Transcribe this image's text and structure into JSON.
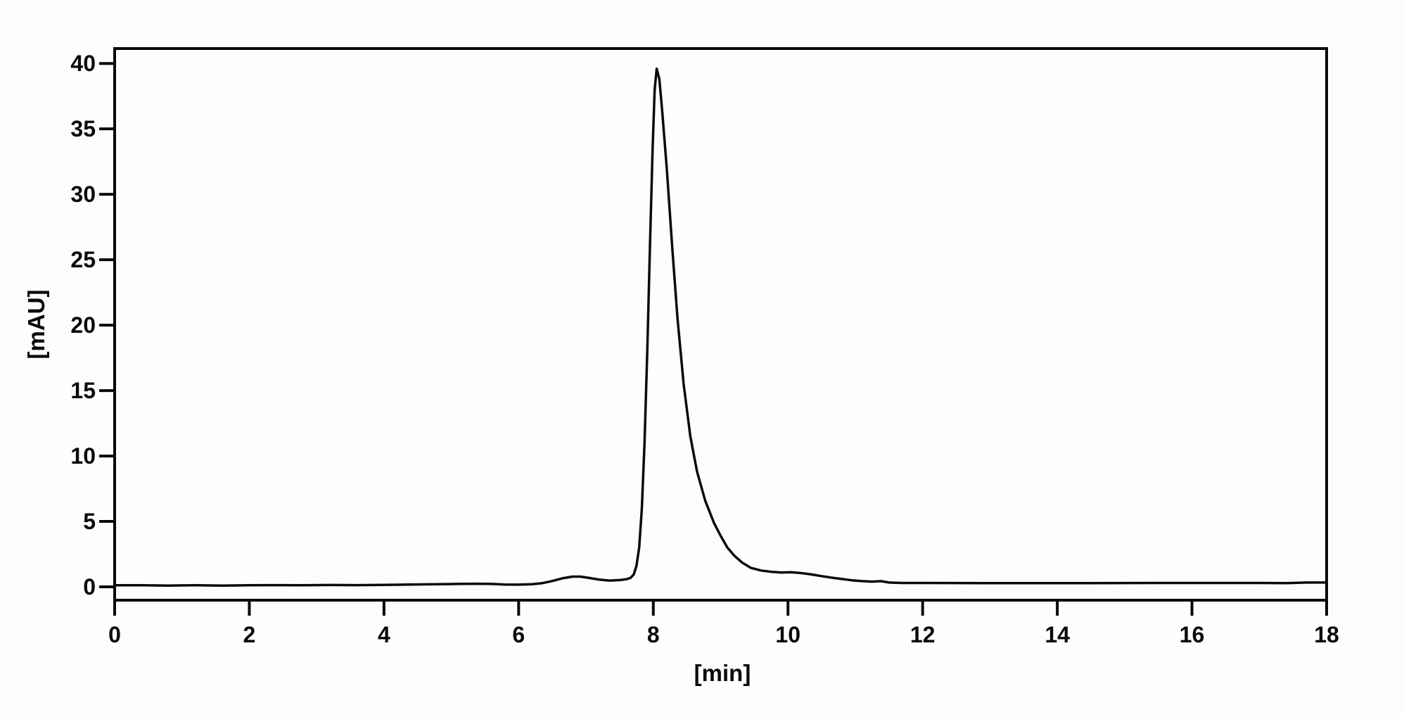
{
  "page": {
    "background": "#fdfdfc",
    "ink_color": "#0a0a0a"
  },
  "chart_data": {
    "type": "line",
    "title": "",
    "xlabel": "[min]",
    "ylabel": "[mAU]",
    "xlim": [
      0,
      18
    ],
    "ylim": [
      -1.02,
      41.14
    ],
    "xticks": [
      0,
      2,
      4,
      6,
      8,
      10,
      12,
      14,
      16,
      18
    ],
    "yticks": [
      0,
      5,
      10,
      15,
      20,
      25,
      30,
      35,
      40
    ],
    "grid": false,
    "legend_position": "none",
    "series": [
      {
        "name": "detector-signal",
        "color": "#0a0a0a",
        "points": [
          [
            0.0,
            0.12
          ],
          [
            0.4,
            0.12
          ],
          [
            0.8,
            0.1
          ],
          [
            1.2,
            0.12
          ],
          [
            1.6,
            0.1
          ],
          [
            2.0,
            0.12
          ],
          [
            2.4,
            0.13
          ],
          [
            2.8,
            0.12
          ],
          [
            3.2,
            0.14
          ],
          [
            3.6,
            0.13
          ],
          [
            4.0,
            0.15
          ],
          [
            4.4,
            0.18
          ],
          [
            4.8,
            0.2
          ],
          [
            5.1,
            0.22
          ],
          [
            5.4,
            0.24
          ],
          [
            5.6,
            0.22
          ],
          [
            5.8,
            0.18
          ],
          [
            6.0,
            0.17
          ],
          [
            6.2,
            0.2
          ],
          [
            6.35,
            0.28
          ],
          [
            6.5,
            0.45
          ],
          [
            6.65,
            0.65
          ],
          [
            6.8,
            0.78
          ],
          [
            6.92,
            0.78
          ],
          [
            7.05,
            0.68
          ],
          [
            7.2,
            0.55
          ],
          [
            7.35,
            0.48
          ],
          [
            7.5,
            0.52
          ],
          [
            7.6,
            0.58
          ],
          [
            7.66,
            0.68
          ],
          [
            7.71,
            0.95
          ],
          [
            7.75,
            1.6
          ],
          [
            7.79,
            3.0
          ],
          [
            7.83,
            6.0
          ],
          [
            7.87,
            11.0
          ],
          [
            7.91,
            18.0
          ],
          [
            7.95,
            26.0
          ],
          [
            7.99,
            33.5
          ],
          [
            8.02,
            38.0
          ],
          [
            8.05,
            39.6
          ],
          [
            8.09,
            38.8
          ],
          [
            8.13,
            36.5
          ],
          [
            8.2,
            32.0
          ],
          [
            8.28,
            26.0
          ],
          [
            8.36,
            20.5
          ],
          [
            8.45,
            15.5
          ],
          [
            8.55,
            11.5
          ],
          [
            8.65,
            8.8
          ],
          [
            8.77,
            6.6
          ],
          [
            8.9,
            4.9
          ],
          [
            9.0,
            3.9
          ],
          [
            9.1,
            3.0
          ],
          [
            9.2,
            2.4
          ],
          [
            9.32,
            1.85
          ],
          [
            9.45,
            1.45
          ],
          [
            9.6,
            1.25
          ],
          [
            9.75,
            1.15
          ],
          [
            9.9,
            1.1
          ],
          [
            10.05,
            1.12
          ],
          [
            10.2,
            1.05
          ],
          [
            10.35,
            0.95
          ],
          [
            10.5,
            0.82
          ],
          [
            10.65,
            0.7
          ],
          [
            10.8,
            0.6
          ],
          [
            10.95,
            0.5
          ],
          [
            11.1,
            0.44
          ],
          [
            11.25,
            0.4
          ],
          [
            11.38,
            0.44
          ],
          [
            11.5,
            0.33
          ],
          [
            11.7,
            0.3
          ],
          [
            12.0,
            0.3
          ],
          [
            12.5,
            0.29
          ],
          [
            13.0,
            0.28
          ],
          [
            13.5,
            0.28
          ],
          [
            14.0,
            0.28
          ],
          [
            14.5,
            0.28
          ],
          [
            15.0,
            0.29
          ],
          [
            15.5,
            0.3
          ],
          [
            16.0,
            0.3
          ],
          [
            16.5,
            0.3
          ],
          [
            17.0,
            0.3
          ],
          [
            17.4,
            0.28
          ],
          [
            17.7,
            0.33
          ],
          [
            18.0,
            0.33
          ]
        ]
      }
    ]
  }
}
